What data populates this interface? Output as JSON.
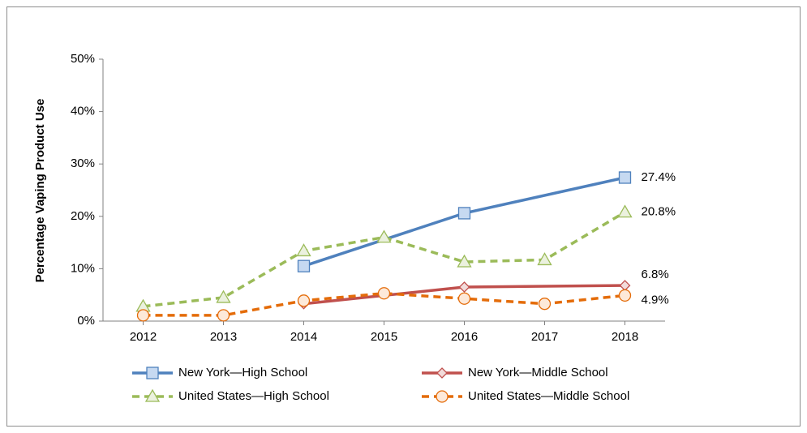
{
  "chart_data": {
    "type": "line",
    "y_label": "Percentage Vaping Product Use",
    "x": [
      2012,
      2013,
      2014,
      2015,
      2016,
      2017,
      2018
    ],
    "xlim": [
      2011.5,
      2018.5
    ],
    "xticks": [
      2012,
      2013,
      2014,
      2015,
      2016,
      2017,
      2018
    ],
    "ylim": [
      0,
      50
    ],
    "yticks": [
      {
        "value": 0,
        "label": "0%"
      },
      {
        "value": 10,
        "label": "10%"
      },
      {
        "value": 20,
        "label": "20%"
      },
      {
        "value": 30,
        "label": "30%"
      },
      {
        "value": 40,
        "label": "40%"
      },
      {
        "value": 50,
        "label": "50%"
      }
    ],
    "series": [
      {
        "name": "New York—High School",
        "color": "#4f81bd",
        "marker": "square",
        "marker_fill": "#c6d9f1",
        "dashed": false,
        "x": [
          2014,
          2016,
          2018
        ],
        "values": [
          10.5,
          20.6,
          27.4
        ],
        "value_labels": [
          null,
          null,
          "27.4%"
        ]
      },
      {
        "name": "New York—Middle School",
        "color": "#c0504d",
        "marker": "diamond",
        "marker_fill": "#f2dcdb",
        "dashed": false,
        "x": [
          2014,
          2016,
          2018
        ],
        "values": [
          3.3,
          6.5,
          6.8
        ],
        "value_labels": [
          null,
          null,
          "6.8%"
        ]
      },
      {
        "name": "United States—High School",
        "color": "#9bbb59",
        "marker": "triangle",
        "marker_fill": "#ebf1de",
        "dashed": true,
        "x": [
          2012,
          2013,
          2014,
          2015,
          2016,
          2017,
          2018
        ],
        "values": [
          2.8,
          4.5,
          13.4,
          16.0,
          11.3,
          11.7,
          20.8
        ],
        "value_labels": [
          null,
          null,
          null,
          null,
          null,
          null,
          "20.8%"
        ]
      },
      {
        "name": "United States—Middle School",
        "color": "#e46c0a",
        "marker": "circle",
        "marker_fill": "#fde9d9",
        "dashed": true,
        "x": [
          2012,
          2013,
          2014,
          2015,
          2016,
          2017,
          2018
        ],
        "values": [
          1.1,
          1.1,
          3.9,
          5.3,
          4.3,
          3.3,
          4.9
        ],
        "value_labels": [
          null,
          null,
          null,
          null,
          null,
          null,
          "4.9%"
        ]
      }
    ]
  }
}
